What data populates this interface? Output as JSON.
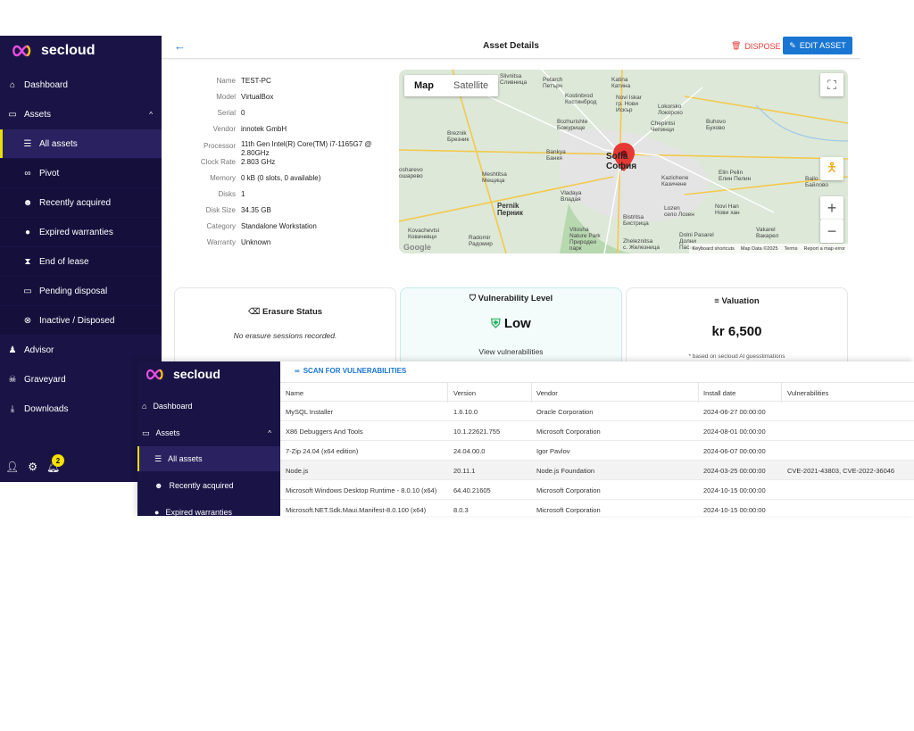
{
  "app": {
    "logo_text": "secloud"
  },
  "sidebar": {
    "items": [
      {
        "label": "Dashboard",
        "icon": "home-icon"
      },
      {
        "label": "Assets",
        "icon": "monitor-icon"
      },
      {
        "label": "All assets",
        "icon": "list-icon"
      },
      {
        "label": "Pivot",
        "icon": "binoculars-icon"
      },
      {
        "label": "Recently acquired",
        "icon": "smile-icon"
      },
      {
        "label": "Expired warranties",
        "icon": "bomb-icon"
      },
      {
        "label": "End of lease",
        "icon": "hourglass-icon"
      },
      {
        "label": "Pending disposal",
        "icon": "battery-icon"
      },
      {
        "label": "Inactive / Disposed",
        "icon": "x-circle-icon"
      },
      {
        "label": "Advisor",
        "icon": "advisor-icon"
      },
      {
        "label": "Graveyard",
        "icon": "skull-icon"
      },
      {
        "label": "Downloads",
        "icon": "download-icon"
      }
    ],
    "notification_count": "2"
  },
  "header": {
    "title": "Asset Details",
    "dispose_label": "DISPOSE",
    "edit_label": "EDIT ASSET"
  },
  "asset": {
    "fields": [
      {
        "key": "Name",
        "value": "TEST-PC"
      },
      {
        "key": "Model",
        "value": "VirtualBox"
      },
      {
        "key": "Serial",
        "value": "0"
      },
      {
        "key": "Vendor",
        "value": "innotek GmbH"
      },
      {
        "key": "Processor",
        "value": "11th Gen Intel(R) Core(TM) i7-1165G7 @ 2.80GHz"
      },
      {
        "key": "Clock Rate",
        "value": "2.803 GHz"
      },
      {
        "key": "Memory",
        "value": "0 kB (0 slots, 0 available)"
      },
      {
        "key": "Disks",
        "value": "1"
      },
      {
        "key": "Disk Size",
        "value": "34.35 GB"
      },
      {
        "key": "Category",
        "value": "Standalone Workstation"
      },
      {
        "key": "Warranty",
        "value": "Unknown"
      }
    ]
  },
  "map": {
    "tab_map": "Map",
    "tab_satellite": "Satellite",
    "footer": [
      "Keyboard shortcuts",
      "Map Data ©2025",
      "Terms",
      "Report a map error"
    ],
    "google": "Google",
    "labels": [
      {
        "t": "Slivnitsa\nСливница"
      },
      {
        "t": "Petarch\nПетърч"
      },
      {
        "t": "Katina\nКатина"
      },
      {
        "t": "Kostinbrod\nКостинброд"
      },
      {
        "t": "Novi Iskar\nгр. Нови\nИскър"
      },
      {
        "t": "Lokorsko\nЛокорско"
      },
      {
        "t": "Breznik\nБрезник"
      },
      {
        "t": "Bozhurishte\nБожурище"
      },
      {
        "t": "Chepintsi\nЧепинци"
      },
      {
        "t": "Buhovo\nБухово"
      },
      {
        "t": "Bankya\nБанкя"
      },
      {
        "t": "Sofia\nСофия"
      },
      {
        "t": "osharevo\nошарево"
      },
      {
        "t": "Meshtitsa\nМещица"
      },
      {
        "t": "Kazichene\nКазичене"
      },
      {
        "t": "Elin Pelin\nЕлин Пелин"
      },
      {
        "t": "Bailo\nБайлово"
      },
      {
        "t": "Vladaya\nВладая"
      },
      {
        "t": "Pernik\nПерник"
      },
      {
        "t": "Lozen\nсело Лозен"
      },
      {
        "t": "Novi Han\nНови хан"
      },
      {
        "t": "Bistritsa\nБистрица"
      },
      {
        "t": "Kovachevtsi\nКовачевци"
      },
      {
        "t": "Radomir\nРадомир"
      },
      {
        "t": "Vitosha\nNature Park\nПриродеи\nпарк"
      },
      {
        "t": "Zheleznitsa\nс. Железница"
      },
      {
        "t": "Dolni Pasarel\nДолни\nПасарел"
      },
      {
        "t": "Vakarel\nВакарел"
      }
    ]
  },
  "cards": {
    "erasure": {
      "title": "Erasure Status",
      "text": "No erasure sessions recorded."
    },
    "vulnerability": {
      "title": "Vulnerability Level",
      "level": "Low",
      "link": "View vulnerabilities"
    },
    "valuation": {
      "title": "Valuation",
      "value": "kr 6,500",
      "note": "* based on secloud AI guesstimations"
    }
  },
  "screen2": {
    "sidebar": [
      {
        "label": "Dashboard"
      },
      {
        "label": "Assets"
      },
      {
        "label": "All assets"
      },
      {
        "label": "Recently acquired"
      },
      {
        "label": "Expired warranties"
      }
    ],
    "scan_label": "SCAN FOR VULNERABILITIES",
    "columns": [
      "Name",
      "Version",
      "Vendor",
      "Install date",
      "Vulnerabilities"
    ],
    "rows": [
      {
        "name": "MySQL Installer",
        "version": "1.6.10.0",
        "vendor": "Oracle Corporation",
        "date": "2024-06-27 00:00:00",
        "vulns": ""
      },
      {
        "name": "X86 Debuggers And Tools",
        "version": "10.1.22621.755",
        "vendor": "Microsoft Corporation",
        "date": "2024-08-01 00:00:00",
        "vulns": ""
      },
      {
        "name": "7-Zip 24.04 (x64 edition)",
        "version": "24.04.00.0",
        "vendor": "Igor Pavlov",
        "date": "2024-06-07 00:00:00",
        "vulns": ""
      },
      {
        "name": "Node.js",
        "version": "20.11.1",
        "vendor": "Node.js Foundation",
        "date": "2024-03-25 00:00:00",
        "vulns": "CVE-2021-43803, CVE-2022-36046"
      },
      {
        "name": "Microsoft Windows Desktop Runtime - 8.0.10 (x64)",
        "version": "64.40.21605",
        "vendor": "Microsoft Corporation",
        "date": "2024-10-15 00:00:00",
        "vulns": ""
      },
      {
        "name": "Microsoft.NET.Sdk.Maui.Manifest-8.0.100 (x64)",
        "version": "8.0.3",
        "vendor": "Microsoft Corporation",
        "date": "2024-10-15 00:00:00",
        "vulns": ""
      }
    ]
  }
}
